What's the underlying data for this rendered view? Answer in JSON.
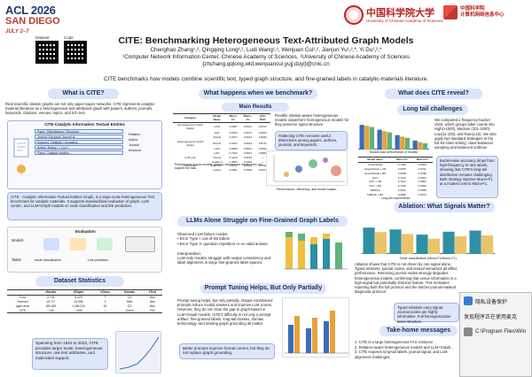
{
  "header": {
    "acl_line1": "ACL 2026",
    "acl_line2": "SAN DIEGO",
    "acl_dates": "JULY 2–7",
    "dataset_label": "Dataset",
    "code_label": "Code",
    "ucas_cn": "中国科学院大学",
    "ucas_en": "University of Chinese Academy of Sciences",
    "cnic_line1": "中国科学院",
    "cnic_line2": "计算机网络信息中心"
  },
  "title": "CITE: Benchmarking Heterogeneous Text-Attributed Graph Models",
  "authors": "Chenghao Zhang¹,², Qingqing Long¹,², Ludi Wang¹,², Wenjuan Cui¹,², Jianjun Yu¹,²,*, Yi Du¹,²,*",
  "affiliation": "¹Computer Network Information Center, Chinese Academy of Sciences, ²University of Chinese Academy of Sciences",
  "emails": "{zhchang,qqlong,wld,wenjuancui,yujj,duyi}@cnic.cn",
  "tagline": "CITE benchmarks how models combine scientific text, typed graph structure, and fine-grained labels in catalytic-materials literature.",
  "col1": {
    "heading": "What is CITE?",
    "intro": "Real scientific citation graphs are not only paper-paper networks. CITE represents catalytic-material literature as a heterogeneous text-attributed graph with papers, authors, journals, keywords, citations, venues, topics, and rich text.",
    "diagram_title": "CITE-Catalytic Information Textual Entities",
    "entities": [
      "Paper: Title/Abstract / Structural...",
      "Journal: European Journal of...",
      "Keyword: Catalysis / Aromatics...",
      "Author: Zhang J. / Liu Y...",
      "Paper: Catalytic reaction..."
    ],
    "legend_relation": "Relation",
    "legend_items": [
      "Author",
      "Journal",
      "Keyword"
    ],
    "summary": "CITE - Catalytic Information Textual Entities Graph, is a large-scale heterogeneous TAG benchmark for catalytic materials. It supports standardized evaluation of graph, LLM-centric, and LLM+Graph models on node classification and link prediction.",
    "eval_label": "Evaluation",
    "models_label": "Models",
    "tasks_label": "Tasks",
    "tasks_items": [
      "Node classification",
      "Link prediction"
    ],
    "stats_heading": "Dataset Statistics",
    "stats_cols": [
      "#Nodes",
      "#Edges",
      "#Class",
      "Domain",
      "#Text"
    ],
    "stats_rows": [
      [
        "Cora",
        "2,708",
        "5,429",
        "7",
        "CS",
        "Abs"
      ],
      [
        "Pubmed",
        "19,717",
        "44,338",
        "3",
        "Med",
        "Abs"
      ],
      [
        "ogbn-arxiv",
        "169,343",
        "1,166,243",
        "40",
        "CS",
        "Abs"
      ],
      [
        "CITE",
        "~1M",
        "~10M",
        "—",
        "Chem",
        "Full"
      ]
    ],
    "stats_note": "Spanning from 1922 to 2022, CITE provides larger scale, heterogeneous structure, raw text attributes, and multi-label support."
  },
  "col2": {
    "heading": "What happens when we benchmark?",
    "results_heading": "Main Results",
    "results_cols": [
      "Category",
      "Model Name",
      "Micro-F1",
      "Macro-F1",
      "AUC-ROC"
    ],
    "results_rows": [
      [
        "Homogeneous Graph Model",
        "GCN",
        "0.6387",
        "0.5034",
        "0.8217"
      ],
      [
        "",
        "GAT",
        "0.6513",
        "0.5167",
        "0.8301"
      ],
      [
        "",
        "SAGE",
        "0.6677",
        "0.5312",
        "0.8452"
      ],
      [
        "Heterogeneous Graph Model",
        "RGCN",
        "0.6941",
        "0.5623",
        "0.8711"
      ],
      [
        "",
        "HAN",
        "0.6805",
        "0.5501",
        "0.8634"
      ],
      [
        "",
        "HGT",
        "0.7102",
        "0.5874",
        "0.8893"
      ],
      [
        "LLM-only",
        "Vicuna",
        "0.4213",
        "0.3155",
        "—"
      ],
      [
        "",
        "LLaMA-2",
        "0.4581",
        "0.3402",
        "—"
      ],
      [
        "LLM+Graph",
        "GraphGPT",
        "0.6732",
        "0.5410",
        "0.8520"
      ],
      [
        "",
        "LLaGA",
        "0.6891",
        "0.5596",
        "0.8677"
      ]
    ],
    "results_caption": "Performance across models, where * denotes the model does not support the task.",
    "note1": "Flexible relation-aware heterogeneous models outperform homogeneous models for they preserve typed structure.",
    "note2": "Flattening CITE removes useful distinctions among papers, authors, journals, and keywords.",
    "scatter_caption": "Performance, efficiency, and model scales.",
    "llm_heading": "LLMs Alone Struggle on Fine-Grained Graph Labels",
    "llm_text": "Observed LLM failure modes:\n• Error Type I: out-of-list labels\n• Error Type II: question repetition or no valid answer\n\nInterpretation:\nLLM-only models struggle with output consistency and label alignment in large fine-grained label spaces.",
    "prompt_heading": "Prompt Tuning Helps, But Only Partially",
    "prompt_text": "Prompt tuning helps, but only partially. Output-constrained prompts reduce invalid answers and improve LLM scores. However, they do not close the gap to graph-based or LLM+Graph models. CITE's difficulty is not only a prompt artifact: fine-grained labels, long-tail classes, domain terminology, and missing graph grounding all matter.",
    "prompt_box": "Better prompts improve format control, but they do not replace graph grounding."
  },
  "col3": {
    "heading": "What does CITE reveal?",
    "longtail_heading": "Long tail challenges",
    "longtail_text": "We compared a frequency-bucket chart, which groups label counts into High(>1000), Medium (101-1000), Low(11-100), and Rare(≤10). We also apply two standard strategies to the full 84-class setting: class-balanced sampling and balanced softmax.",
    "bucket_caption": "Bucket-wise performance of models",
    "bucket_cols": [
      "Model name",
      "Micro-F1",
      "Macro-F1"
    ],
    "bucket_rows": [
      [
        "GraphSAGE",
        "0.7035",
        "0.5620"
      ],
      [
        "GraphSAGE + CB",
        "0.6975",
        "0.5731"
      ],
      [
        "GraphSAGE + BS",
        "0.6958",
        "0.5788"
      ],
      [
        "HGT",
        "0.7102",
        "0.5874"
      ],
      [
        "HGT + CB",
        "0.7021",
        "0.5960"
      ],
      [
        "HGT + BS",
        "0.7010",
        "0.5992"
      ],
      [
        "SIMPLE",
        "0.6912",
        "0.5558"
      ],
      [
        "SIMPLE + BS",
        "0.6880",
        "0.5670"
      ]
    ],
    "longtail_caption": "Long tail experiments",
    "longtail_box": "Bucket-wise accuracy drops from high-frequency to rare labels, showing that CITE's long-tail distribution remains challenging. Both strategy improve Macro-F1 at a modest cost to Micro-F1.",
    "ablation_heading": "Ablation: What Signals Matter?",
    "ablation_caption": "Node classification (Micro-F1/Macro-F1)",
    "ablation_text": "Ablation shows that CITE is not driven by one signal alone. Typed relations, journal nodes, and textual semantics all affect performance. Removing journal nodes strongly degrades heterogeneous models, confirming that venue information is a high-signal but potentially shortcut feature. This motivates reporting both the full protocol and the stricter journal-masked diagnostic protocol.",
    "ablation_box": "Typed relations carry signal. Journal nodes are highly informative. Full homogenization loses structure.",
    "takehome_heading": "Take-home messages",
    "takehome_items": [
      "1. CITE is a large heterogeneous TAG resource",
      "2. Relation-aware heterogeneous models and LLM+Graph...",
      "3. CITE exposes long-tail labels, journal signal, and LLM alignment challenges."
    ]
  },
  "popup": {
    "row1": "隐私设备保护",
    "row2": "发现程序正在使用麦克",
    "row3": "C:\\Program Files\\Win"
  },
  "chart_data": [
    {
      "type": "bar",
      "title": "",
      "categories": [
        "High",
        "Medium",
        "Low",
        "Rare"
      ],
      "series": [
        {
          "name": "",
          "values": [
            0.82,
            0.66,
            0.48,
            0.3
          ]
        },
        {
          "name": "",
          "values": [
            0.79,
            0.61,
            0.43,
            0.25
          ]
        },
        {
          "name": "",
          "values": [
            0.75,
            0.57,
            0.39,
            0.21
          ]
        }
      ],
      "colors": [
        "#3b6db5",
        "#e6a23c",
        "#5fb37c"
      ]
    },
    {
      "type": "bar",
      "title": "",
      "categories": [
        "Full",
        "-Rel",
        "-Journal",
        "-Text",
        "Homo"
      ],
      "series": [
        {
          "name": "",
          "values": [
            0.71,
            0.66,
            0.52,
            0.6,
            0.63
          ]
        },
        {
          "name": "",
          "values": [
            0.59,
            0.54,
            0.41,
            0.48,
            0.5
          ]
        }
      ],
      "colors": [
        "#2f8fa3",
        "#e9c46a"
      ]
    }
  ]
}
